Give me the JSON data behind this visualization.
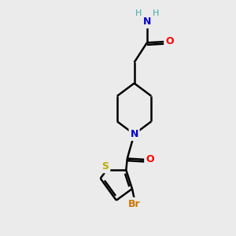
{
  "background_color": "#ebebeb",
  "bond_color": "#000000",
  "N_color": "#0000cc",
  "O_color": "#ff0000",
  "S_color": "#bbaa00",
  "Br_color": "#cc7700",
  "H_color": "#44aaaa",
  "line_width": 1.8,
  "figsize": [
    3.0,
    3.0
  ],
  "dpi": 100,
  "xlim": [
    0,
    10
  ],
  "ylim": [
    0,
    10
  ]
}
